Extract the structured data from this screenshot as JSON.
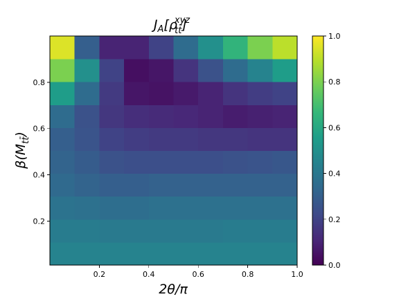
{
  "chart_data": {
    "type": "heatmap",
    "title_parts": [
      "J",
      "A",
      "[ρ",
      "xyz",
      "tt̄",
      "]"
    ],
    "xlabel": "2θ/π",
    "ylabel_parts": [
      "β(M",
      "tt̄",
      ")"
    ],
    "x": [
      0.05,
      0.15,
      0.25,
      0.35,
      0.45,
      0.55,
      0.65,
      0.75,
      0.85,
      0.95
    ],
    "y": [
      0.05,
      0.15,
      0.25,
      0.35,
      0.45,
      0.55,
      0.65,
      0.75,
      0.85,
      0.95
    ],
    "z": [
      [
        0.45,
        0.45,
        0.45,
        0.45,
        0.45,
        0.45,
        0.45,
        0.45,
        0.45,
        0.45
      ],
      [
        0.42,
        0.42,
        0.41,
        0.41,
        0.41,
        0.41,
        0.41,
        0.42,
        0.42,
        0.42
      ],
      [
        0.38,
        0.37,
        0.36,
        0.36,
        0.37,
        0.37,
        0.37,
        0.37,
        0.37,
        0.37
      ],
      [
        0.34,
        0.32,
        0.3,
        0.3,
        0.31,
        0.31,
        0.31,
        0.31,
        0.31,
        0.31
      ],
      [
        0.32,
        0.29,
        0.25,
        0.24,
        0.24,
        0.24,
        0.24,
        0.25,
        0.26,
        0.27
      ],
      [
        0.3,
        0.26,
        0.2,
        0.18,
        0.17,
        0.17,
        0.16,
        0.16,
        0.15,
        0.15
      ],
      [
        0.35,
        0.25,
        0.16,
        0.13,
        0.12,
        0.11,
        0.1,
        0.08,
        0.09,
        0.1
      ],
      [
        0.55,
        0.35,
        0.17,
        0.06,
        0.05,
        0.07,
        0.1,
        0.15,
        0.18,
        0.2
      ],
      [
        0.8,
        0.5,
        0.2,
        0.04,
        0.06,
        0.15,
        0.25,
        0.35,
        0.45,
        0.55
      ],
      [
        0.95,
        0.3,
        0.1,
        0.1,
        0.2,
        0.35,
        0.5,
        0.65,
        0.8,
        0.9
      ]
    ],
    "xlim": [
      0.0,
      1.0
    ],
    "ylim": [
      0.01,
      1.0
    ],
    "xticks": [
      0.2,
      0.4,
      0.6,
      0.8,
      {
        "value": 1,
        "label": "1.0"
      }
    ],
    "yticks": [
      0.2,
      0.4,
      0.6,
      0.8
    ],
    "clim": [
      0,
      1
    ],
    "cticks": [
      {
        "value": 0,
        "label": "0.0"
      },
      0.2,
      0.4,
      0.6,
      0.8,
      {
        "value": 1,
        "label": "1.0"
      }
    ],
    "colormap": "viridis"
  }
}
